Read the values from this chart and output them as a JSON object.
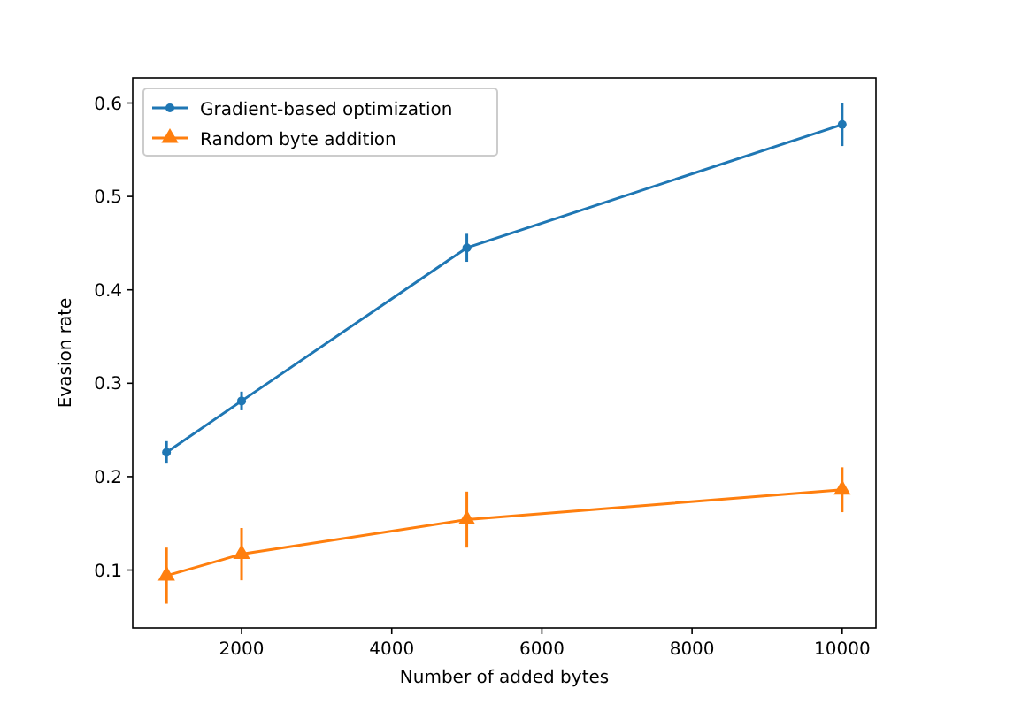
{
  "chart_data": {
    "type": "line",
    "xlabel": "Number of added bytes",
    "ylabel": "Evasion rate",
    "x": [
      1000,
      2000,
      5000,
      10000
    ],
    "series": [
      {
        "name": "Gradient-based optimization",
        "color": "#1f77b4",
        "marker": "circle",
        "values": [
          0.226,
          0.281,
          0.445,
          0.577
        ],
        "errors": [
          0.012,
          0.01,
          0.015,
          0.023
        ]
      },
      {
        "name": "Random byte addition",
        "color": "#ff7f0e",
        "marker": "triangle",
        "values": [
          0.094,
          0.117,
          0.154,
          0.186
        ],
        "errors": [
          0.03,
          0.028,
          0.03,
          0.024
        ]
      }
    ],
    "xlim": [
      550,
      10450
    ],
    "xticks": [
      2000,
      4000,
      6000,
      8000,
      10000
    ],
    "ylim": [
      0.038,
      0.627
    ],
    "yticks": [
      0.1,
      0.2,
      0.3,
      0.4,
      0.5,
      0.6
    ],
    "grid": false,
    "legend": "top left"
  }
}
